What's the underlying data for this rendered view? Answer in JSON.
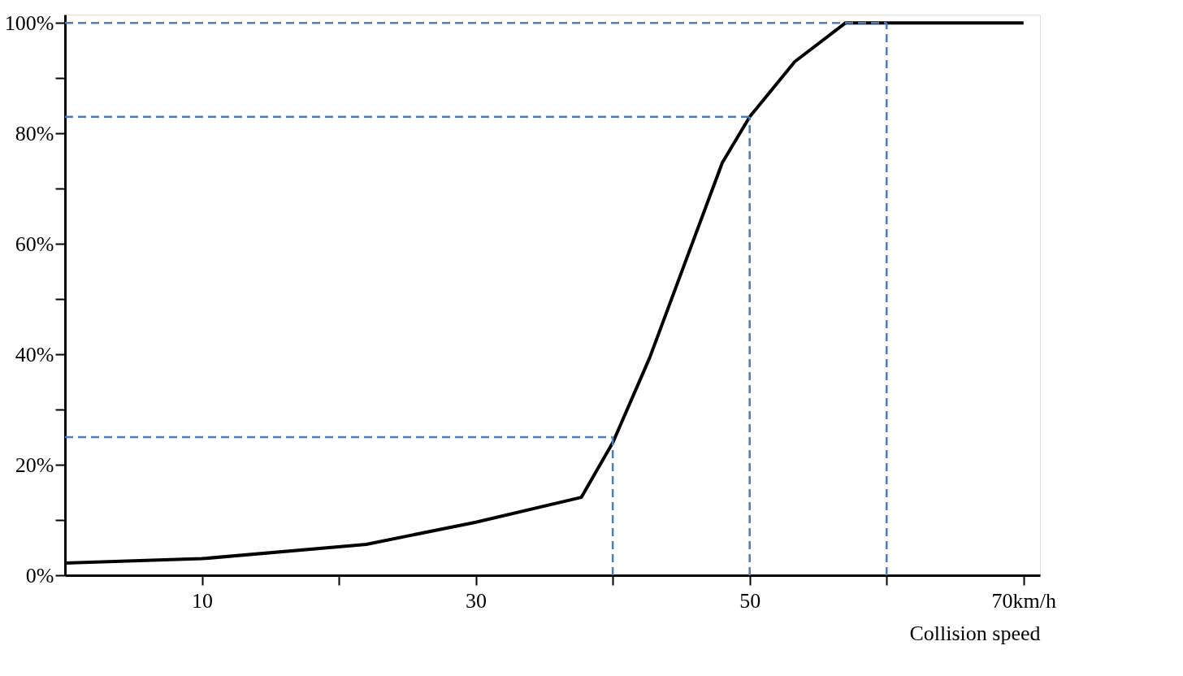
{
  "chart_data": {
    "type": "line",
    "xlabel": "Collision speed",
    "x": [
      0,
      10,
      22,
      30,
      37.7,
      40,
      42.7,
      48,
      50,
      53.3,
      57,
      70
    ],
    "series": [
      {
        "color": "#000000",
        "values": [
          2.2,
          3,
          5.6,
          9.6,
          14.1,
          24,
          39.4,
          74.7,
          83,
          93,
          100,
          100
        ]
      }
    ],
    "xlim": [
      0,
      71.2
    ],
    "ylim": [
      0,
      101.5
    ],
    "xticks": [
      {
        "value": 10,
        "label": "10"
      },
      {
        "value": 20,
        "label": null
      },
      {
        "value": 30,
        "label": "30"
      },
      {
        "value": 40,
        "label": null
      },
      {
        "value": 50,
        "label": "50"
      },
      {
        "value": 60,
        "label": null
      },
      {
        "value": 70,
        "label": "70km/h"
      }
    ],
    "yticks": [
      {
        "value": 0,
        "label": "0%"
      },
      {
        "value": 10,
        "label": null
      },
      {
        "value": 20,
        "label": "20%"
      },
      {
        "value": 30,
        "label": null
      },
      {
        "value": 40,
        "label": "40%"
      },
      {
        "value": 50,
        "label": null
      },
      {
        "value": 60,
        "label": "60%"
      },
      {
        "value": 70,
        "label": null
      },
      {
        "value": 80,
        "label": "80%"
      },
      {
        "value": 90,
        "label": null
      },
      {
        "value": 100,
        "label": "100%"
      }
    ],
    "ref_lines": [
      {
        "axis": "y",
        "value": 25,
        "color": "#4a7cc7",
        "line_style": "dashed"
      },
      {
        "axis": "x",
        "value": 40,
        "color": "#4a7cc7",
        "line_style": "dashed"
      },
      {
        "axis": "y",
        "value": 83,
        "color": "#4a7cc7",
        "line_style": "dashed"
      },
      {
        "axis": "x",
        "value": 50,
        "color": "#4a7cc7",
        "line_style": "dashed"
      },
      {
        "axis": "y",
        "value": 100,
        "color": "#4a7cc7",
        "line_style": "dashed"
      },
      {
        "axis": "x",
        "value": 60,
        "color": "#4a7cc7",
        "line_style": "dashed"
      }
    ],
    "grid": false,
    "marker": "none",
    "line_style": "solid"
  }
}
